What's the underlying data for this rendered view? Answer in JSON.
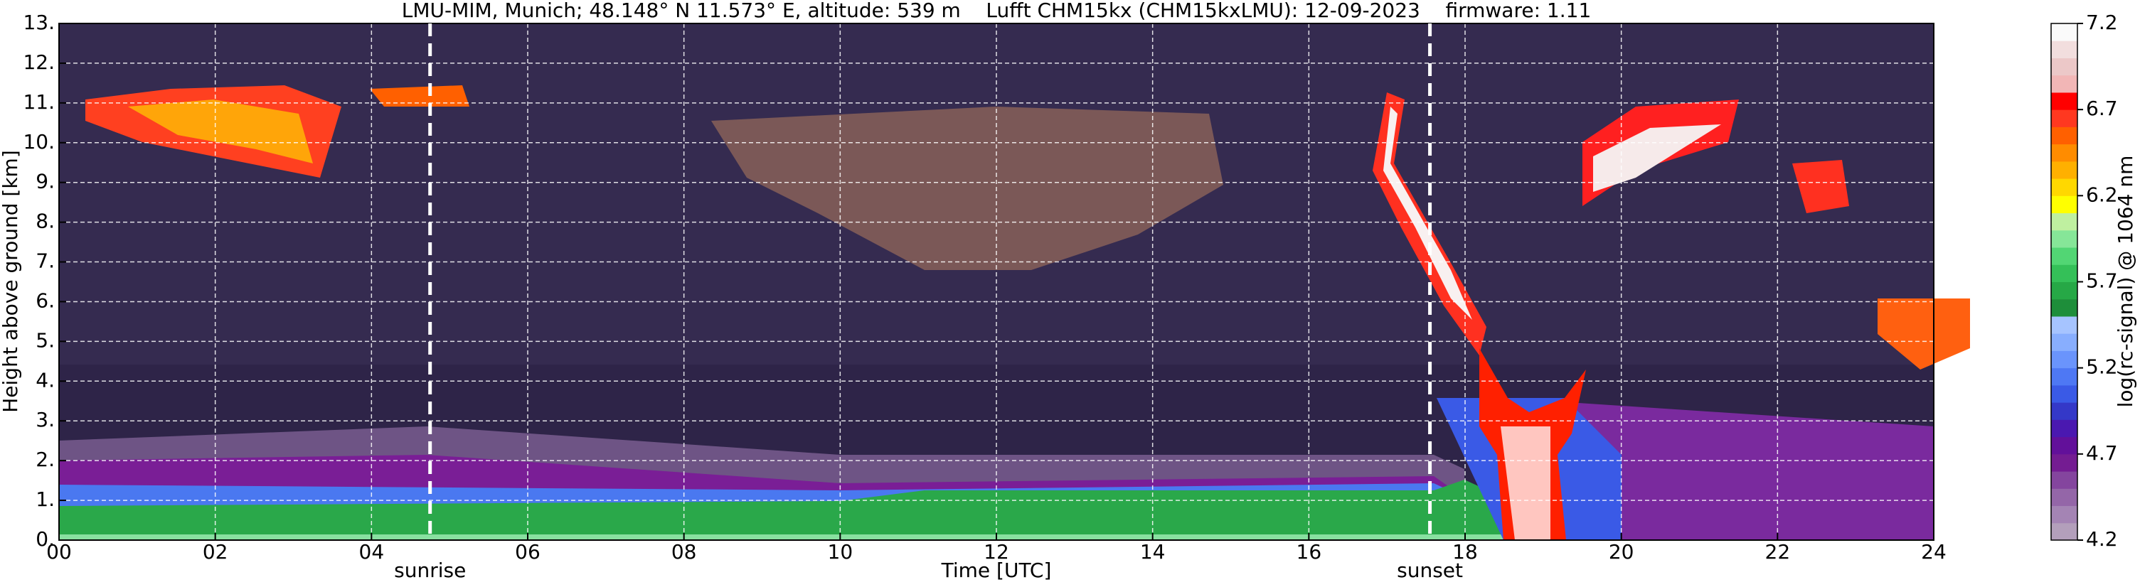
{
  "chart_data": {
    "type": "heatmap",
    "title": "LMU-MIM, Munich; 48.148° N 11.573° E, altitude: 539 m    Lufft CHM15kx (CHM15kxLMU): 12-09-2023    firmware: 1.11",
    "xlabel": "Time [UTC]",
    "ylabel": "Height above ground [km]",
    "xlim": [
      0,
      24
    ],
    "ylim": [
      0,
      13
    ],
    "xticks": [
      {
        "value": 0,
        "label": "00"
      },
      {
        "value": 2,
        "label": "02"
      },
      {
        "value": 4,
        "label": "04"
      },
      {
        "value": 6,
        "label": "06"
      },
      {
        "value": 8,
        "label": "08"
      },
      {
        "value": 10,
        "label": "10"
      },
      {
        "value": 12,
        "label": "12"
      },
      {
        "value": 14,
        "label": "14"
      },
      {
        "value": 16,
        "label": "16"
      },
      {
        "value": 18,
        "label": "18"
      },
      {
        "value": 20,
        "label": "20"
      },
      {
        "value": 22,
        "label": "22"
      },
      {
        "value": 24,
        "label": "24"
      }
    ],
    "yticks": [
      {
        "value": 0,
        "label": "0."
      },
      {
        "value": 1,
        "label": "1."
      },
      {
        "value": 2,
        "label": "2."
      },
      {
        "value": 3,
        "label": "3."
      },
      {
        "value": 4,
        "label": "4."
      },
      {
        "value": 5,
        "label": "5."
      },
      {
        "value": 6,
        "label": "6."
      },
      {
        "value": 7,
        "label": "7."
      },
      {
        "value": 8,
        "label": "8."
      },
      {
        "value": 9,
        "label": "9."
      },
      {
        "value": 10,
        "label": "10."
      },
      {
        "value": 11,
        "label": "11."
      },
      {
        "value": 12,
        "label": "12."
      },
      {
        "value": 13,
        "label": "13."
      }
    ],
    "grid": true,
    "markers": [
      {
        "x": 4.75,
        "label": "sunrise"
      },
      {
        "x": 17.55,
        "label": "sunset"
      }
    ],
    "colorbar": {
      "label": "log(rc-signal) @ 1064 nm",
      "lim": [
        4.2,
        7.2
      ],
      "ticks": [
        4.2,
        4.7,
        5.2,
        5.7,
        6.2,
        6.7,
        7.2
      ],
      "colors": [
        "#b39fbb",
        "#a484b4",
        "#9466a8",
        "#84459e",
        "#741c92",
        "#62109a",
        "#4a18b0",
        "#3438c8",
        "#3a5ae6",
        "#4e78f4",
        "#6a94fc",
        "#88aefe",
        "#a6c4ff",
        "#1e8e3a",
        "#26a846",
        "#34c058",
        "#52d674",
        "#86e698",
        "#bff0a0",
        "#ffff00",
        "#ffd800",
        "#ffb000",
        "#ff8c00",
        "#ff6000",
        "#ff3820",
        "#ff0000",
        "#f2b6b6",
        "#ecc8c8",
        "#f2dede",
        "#fafafa"
      ]
    }
  }
}
